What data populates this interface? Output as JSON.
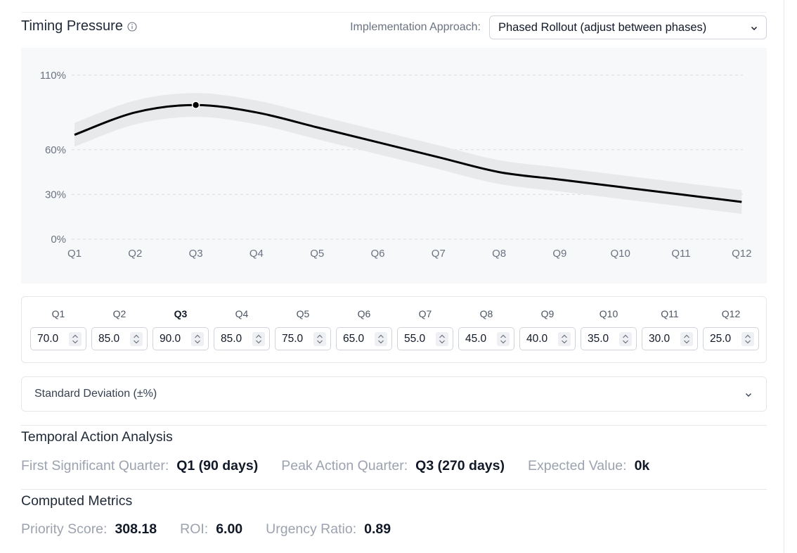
{
  "header": {
    "title": "Timing Pressure",
    "approach_label": "Implementation Approach:",
    "approach_selected": "Phased Rollout (adjust between phases)"
  },
  "chart_data": {
    "type": "line",
    "categories": [
      "Q1",
      "Q2",
      "Q3",
      "Q4",
      "Q5",
      "Q6",
      "Q7",
      "Q8",
      "Q9",
      "Q10",
      "Q11",
      "Q12"
    ],
    "series": [
      {
        "values": [
          70,
          85,
          90,
          85,
          75,
          65,
          55,
          45,
          40,
          35,
          30,
          25
        ]
      }
    ],
    "band_half_width": 8,
    "y_tick_labels": [
      "110%",
      "60%",
      "30%",
      "0%"
    ],
    "y_ticks": [
      110,
      60,
      30,
      0
    ],
    "ylim": [
      0,
      110
    ],
    "highlighted_category": "Q3",
    "grid": true
  },
  "quarter_inputs": {
    "labels": [
      "Q1",
      "Q2",
      "Q3",
      "Q4",
      "Q5",
      "Q6",
      "Q7",
      "Q8",
      "Q9",
      "Q10",
      "Q11",
      "Q12"
    ],
    "values": [
      "70.0",
      "85.0",
      "90.0",
      "85.0",
      "75.0",
      "65.0",
      "55.0",
      "45.0",
      "40.0",
      "35.0",
      "30.0",
      "25.0"
    ],
    "bold_label": "Q3"
  },
  "std_dev": {
    "label": "Standard Deviation (±%)"
  },
  "temporal": {
    "title": "Temporal Action Analysis",
    "first_label": "First Significant Quarter:",
    "first_value": "Q1 (90 days)",
    "peak_label": "Peak Action Quarter:",
    "peak_value": "Q3 (270 days)",
    "ev_label": "Expected Value:",
    "ev_value": "0k"
  },
  "computed": {
    "title": "Computed Metrics",
    "priority_label": "Priority Score:",
    "priority_value": "308.18",
    "roi_label": "ROI:",
    "roi_value": "6.00",
    "urgency_label": "Urgency Ratio:",
    "urgency_value": "0.89"
  }
}
